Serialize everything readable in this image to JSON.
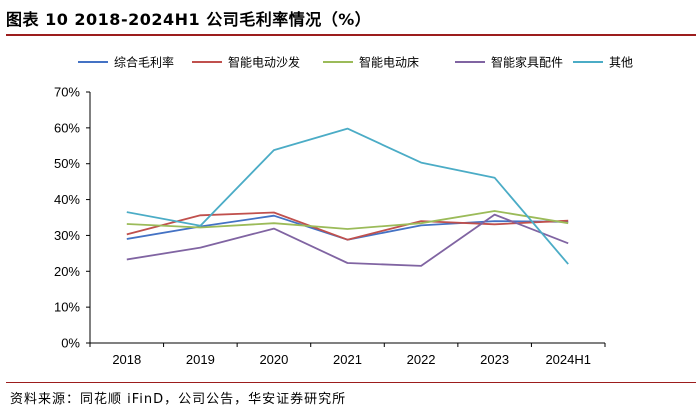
{
  "header": {
    "title": "图表 10 2018-2024H1 公司毛利率情况（%）"
  },
  "footer": {
    "source": "资料来源：同花顺 iFinD，公司公告，华安证券研究所"
  },
  "chart_data": {
    "type": "line",
    "title": "",
    "xlabel": "",
    "ylabel": "",
    "categories": [
      "2018",
      "2019",
      "2020",
      "2021",
      "2022",
      "2023",
      "2024H1"
    ],
    "ylim": [
      0,
      70
    ],
    "yticks": [
      "0%",
      "10%",
      "20%",
      "30%",
      "40%",
      "50%",
      "60%",
      "70%"
    ],
    "ytick_values": [
      0,
      10,
      20,
      30,
      40,
      50,
      60,
      70
    ],
    "legend_position": "top",
    "series": [
      {
        "name": "综合毛利率",
        "color": "#4472c4",
        "values": [
          29.0,
          32.5,
          35.5,
          28.8,
          32.8,
          34.0,
          33.8
        ]
      },
      {
        "name": "智能电动沙发",
        "color": "#c0504d",
        "values": [
          30.3,
          35.6,
          36.4,
          28.8,
          34.0,
          33.1,
          34.1
        ]
      },
      {
        "name": "智能电动床",
        "color": "#9bbb59",
        "values": [
          33.2,
          32.2,
          33.4,
          31.8,
          33.4,
          36.8,
          33.4
        ]
      },
      {
        "name": "智能家具配件",
        "color": "#8064a2",
        "values": [
          23.3,
          26.6,
          31.9,
          22.3,
          21.5,
          35.8,
          27.8
        ]
      },
      {
        "name": "其他",
        "color": "#4bacc6",
        "values": [
          36.5,
          32.7,
          53.8,
          59.8,
          50.3,
          46.1,
          22.0
        ]
      }
    ]
  }
}
